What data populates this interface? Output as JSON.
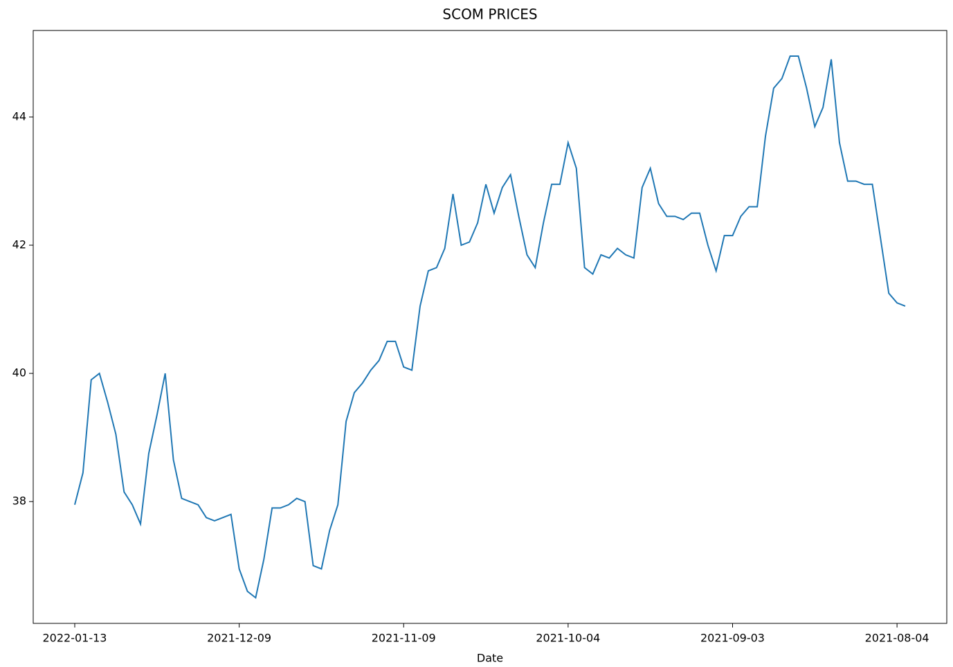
{
  "chart_data": {
    "type": "line",
    "title": "SCOM PRICES",
    "x_label": "Date",
    "categories": [
      "2022-01-13",
      null,
      null,
      null,
      null,
      null,
      null,
      null,
      null,
      null,
      null,
      null,
      null,
      null,
      null,
      null,
      null,
      null,
      null,
      null,
      "2021-12-09",
      null,
      null,
      null,
      null,
      null,
      null,
      null,
      null,
      null,
      null,
      null,
      null,
      null,
      null,
      null,
      null,
      null,
      null,
      null,
      "2021-11-09",
      null,
      null,
      null,
      null,
      null,
      null,
      null,
      null,
      null,
      null,
      null,
      null,
      null,
      null,
      null,
      null,
      null,
      null,
      null,
      "2021-10-04",
      null,
      null,
      null,
      null,
      null,
      null,
      null,
      null,
      null,
      null,
      null,
      null,
      null,
      null,
      null,
      null,
      null,
      null,
      null,
      "2021-09-03",
      null,
      null,
      null,
      null,
      null,
      null,
      null,
      null,
      null,
      null,
      null,
      null,
      null,
      null,
      null,
      null,
      null,
      null,
      null,
      "2021-08-04",
      null
    ],
    "series": [
      {
        "name": "SCOM",
        "color": "#1f77b4",
        "values": [
          37.95,
          38.45,
          39.9,
          40.0,
          39.55,
          39.05,
          38.15,
          37.95,
          37.65,
          38.75,
          39.35,
          40.0,
          38.65,
          38.05,
          38.0,
          37.95,
          37.75,
          37.7,
          37.75,
          37.8,
          36.95,
          36.6,
          36.5,
          37.1,
          37.9,
          37.9,
          37.95,
          38.05,
          38.0,
          37.0,
          36.95,
          37.55,
          37.95,
          39.25,
          39.7,
          39.85,
          40.05,
          40.2,
          40.5,
          40.5,
          40.1,
          40.05,
          41.05,
          41.6,
          41.65,
          41.95,
          42.8,
          42.0,
          42.05,
          42.35,
          42.95,
          42.5,
          42.9,
          43.1,
          42.45,
          41.85,
          41.65,
          42.35,
          42.95,
          42.95,
          43.6,
          43.2,
          41.65,
          41.55,
          41.85,
          41.8,
          41.95,
          41.85,
          41.8,
          42.9,
          43.2,
          42.65,
          42.45,
          42.45,
          42.4,
          42.5,
          42.5,
          42.0,
          41.6,
          42.15,
          42.15,
          42.45,
          42.6,
          42.6,
          43.7,
          44.45,
          44.6,
          44.95,
          44.95,
          44.45,
          43.85,
          44.15,
          44.9,
          43.6,
          43.0,
          43.0,
          42.95,
          42.95,
          42.1,
          41.25,
          41.1,
          41.05
        ]
      }
    ],
    "ylim": [
      36.1,
      45.35
    ],
    "yticks": [
      38,
      40,
      42,
      44
    ],
    "grid": false
  }
}
